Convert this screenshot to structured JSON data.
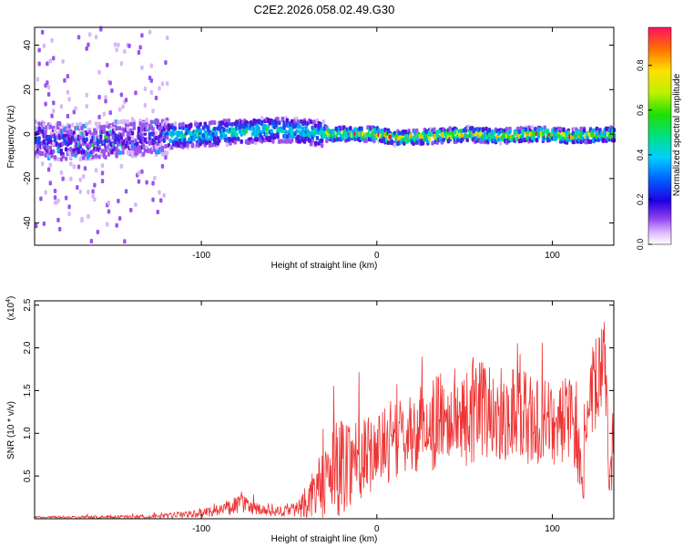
{
  "figure": {
    "title": "C2E2.2026.058.02.49.G30"
  },
  "chart_data": [
    {
      "type": "heatmap",
      "xlabel": "Height of straight line (km)",
      "ylabel": "Frequency (Hz)",
      "xlim": [
        -195,
        135
      ],
      "ylim": [
        -50,
        48
      ],
      "xticks": [
        {
          "value": -100,
          "label": "-100"
        },
        {
          "value": 0,
          "label": "0"
        },
        {
          "value": 100,
          "label": "100"
        }
      ],
      "yticks": [
        {
          "value": 40,
          "label": "40"
        },
        {
          "value": 20,
          "label": "20"
        },
        {
          "value": 0,
          "label": "0"
        },
        {
          "value": -20,
          "label": "-20"
        },
        {
          "value": -40,
          "label": "-40"
        }
      ],
      "ridge": {
        "x": [
          -195,
          -180,
          -160,
          -140,
          -120,
          -100,
          -80,
          -60,
          -40,
          -30,
          -20,
          0,
          10,
          30,
          50,
          70,
          90,
          110,
          135
        ],
        "frequency": [
          -2,
          -4,
          -3,
          -2,
          -1,
          0,
          1,
          2,
          1,
          0,
          0,
          0,
          -2,
          -1,
          0,
          -1,
          0,
          -1,
          0
        ]
      },
      "colorbar": {
        "label": "Normalized spectral amplitude",
        "range": [
          0.0,
          0.97
        ],
        "ticks": [
          {
            "value": 0.0,
            "label": "0.0"
          },
          {
            "value": 0.2,
            "label": "0.2"
          },
          {
            "value": 0.4,
            "label": "0.4"
          },
          {
            "value": 0.6,
            "label": "0.6"
          },
          {
            "value": 0.8,
            "label": "0.8"
          }
        ]
      }
    },
    {
      "type": "line",
      "xlabel": "Height of straight line (km)",
      "ylabel": "SNR (10 * v/v)",
      "scale_note": "(x10",
      "scale_exp": "4",
      "scale_close": ")",
      "xlim": [
        -195,
        135
      ],
      "ylim": [
        0,
        2.55
      ],
      "xticks": [
        {
          "value": -100,
          "label": "-100"
        },
        {
          "value": 0,
          "label": "0"
        },
        {
          "value": 100,
          "label": "100"
        }
      ],
      "yticks": [
        {
          "value": 0.5,
          "label": "0.5"
        },
        {
          "value": 1.0,
          "label": "1.0"
        },
        {
          "value": 1.5,
          "label": "1.5"
        },
        {
          "value": 2.0,
          "label": "2.0"
        },
        {
          "value": 2.5,
          "label": "2.5"
        }
      ],
      "series_color": "#ee3333",
      "envelope": {
        "x": [
          -195,
          -150,
          -120,
          -100,
          -85,
          -78,
          -70,
          -60,
          -45,
          -35,
          -28,
          -22,
          -15,
          -5,
          0,
          10,
          20,
          30,
          40,
          50,
          60,
          70,
          80,
          90,
          100,
          110,
          118,
          122,
          125,
          130,
          133,
          135
        ],
        "mean": [
          0.02,
          0.02,
          0.03,
          0.07,
          0.12,
          0.18,
          0.12,
          0.07,
          0.12,
          0.3,
          0.45,
          0.6,
          0.7,
          0.75,
          0.8,
          0.9,
          1.0,
          1.1,
          1.2,
          1.2,
          1.3,
          1.2,
          1.3,
          1.1,
          1.1,
          1.2,
          0.6,
          1.4,
          1.6,
          1.7,
          0.3,
          1.2
        ],
        "spread": [
          0.01,
          0.02,
          0.03,
          0.05,
          0.08,
          0.12,
          0.08,
          0.05,
          0.1,
          0.3,
          0.45,
          0.6,
          0.55,
          0.45,
          0.45,
          0.45,
          0.45,
          0.55,
          0.55,
          0.6,
          0.6,
          0.55,
          0.6,
          0.55,
          0.5,
          0.5,
          0.4,
          0.6,
          0.6,
          0.6,
          0.3,
          0.5
        ]
      }
    }
  ]
}
